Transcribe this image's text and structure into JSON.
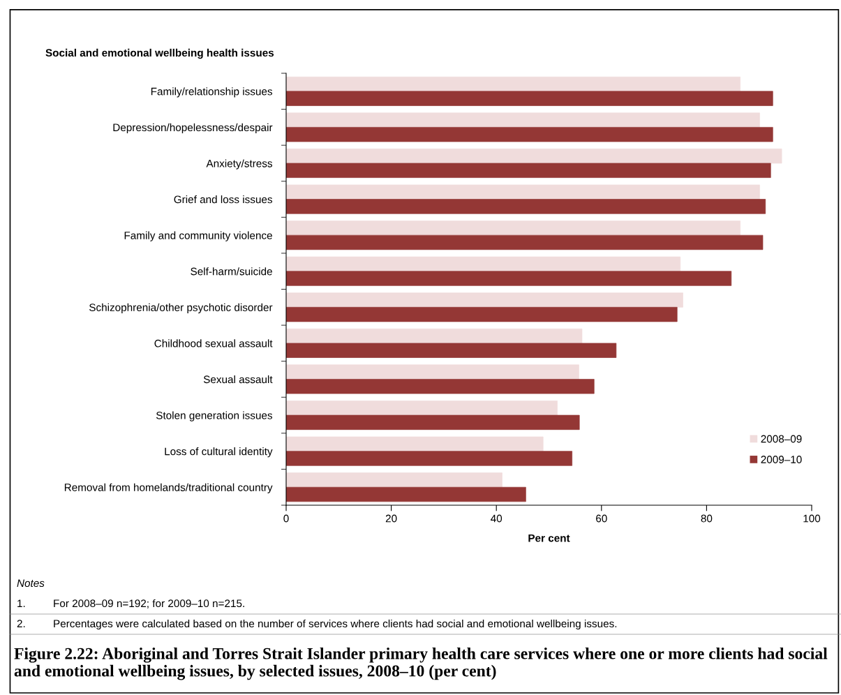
{
  "chart_data": {
    "type": "bar",
    "orientation": "horizontal",
    "title": "Figure 2.22: Aboriginal and Torres Strait Islander primary health care services where one or more clients had social and emotional wellbeing issues, by selected issues, 2008–10 (per cent)",
    "ylabel": "Social and emotional wellbeing health issues",
    "xlabel": "Per cent",
    "categories": [
      "Family/relationship issues",
      "Depression/hopelessness/despair",
      "Anxiety/stress",
      "Grief and loss issues",
      "Family and community violence",
      "Self-harm/suicide",
      "Schizophrenia/other psychotic disorder",
      "Childhood sexual assault",
      "Sexual assault",
      "Stolen generation issues",
      "Loss of cultural identity",
      "Removal from homelands/traditional country"
    ],
    "series": [
      {
        "name": "2008–09",
        "color": "#f0dcdc",
        "values": [
          86.4,
          90.1,
          94.3,
          90.1,
          86.4,
          75.0,
          75.5,
          56.3,
          55.7,
          51.6,
          48.9,
          41.1
        ]
      },
      {
        "name": "2009–10",
        "color": "#943735",
        "values": [
          92.6,
          92.6,
          92.2,
          91.2,
          90.7,
          84.7,
          74.4,
          62.8,
          58.6,
          55.8,
          54.4,
          45.6
        ]
      }
    ],
    "xlim": [
      0,
      100
    ],
    "xticks": [
      0,
      20,
      40,
      60,
      80,
      100
    ],
    "grid": false,
    "legend": "bottom right",
    "annotations": [
      "Notes",
      "1. For 2008–09 n=192; for 2009–10 n=215.",
      "2. Percentages were calculated based on the number of services where clients had social and emotional wellbeing issues."
    ]
  }
}
